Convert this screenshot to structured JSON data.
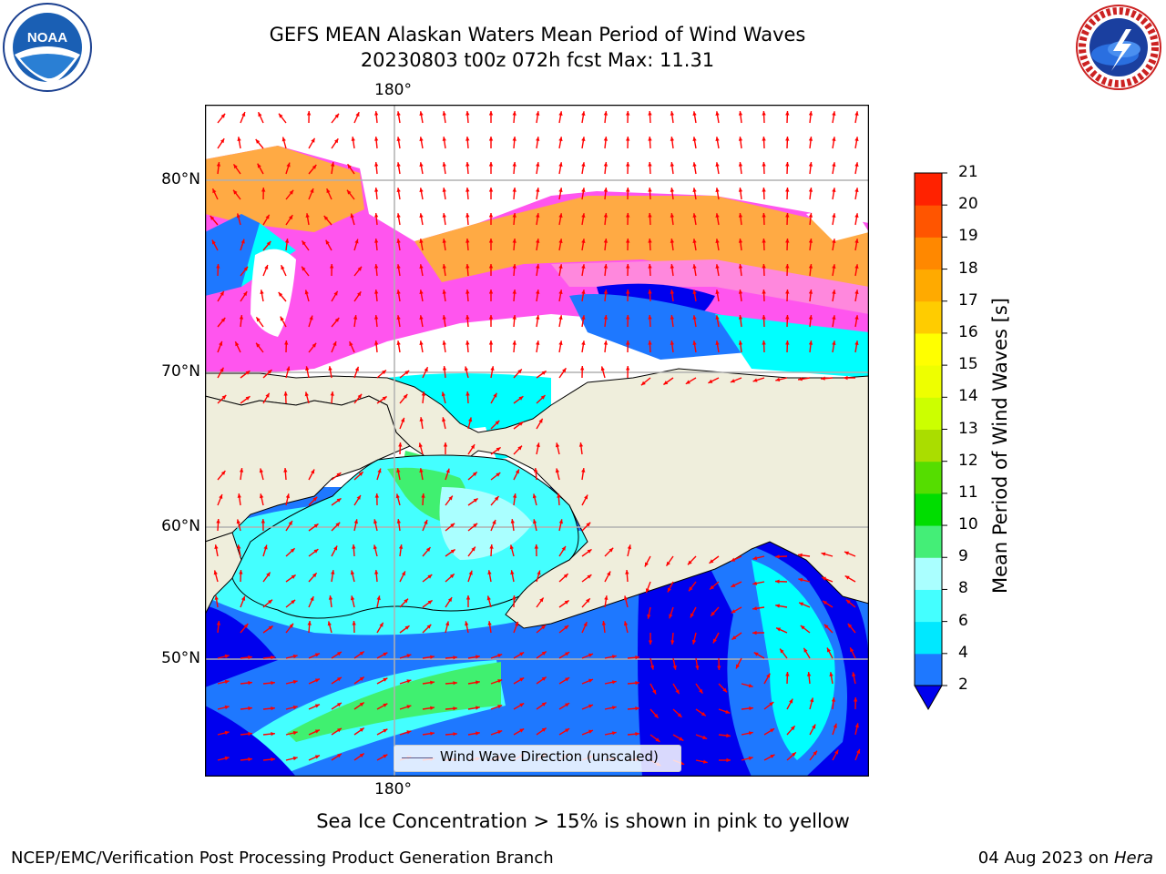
{
  "title": {
    "line1": "GEFS MEAN Alaskan Waters Mean Period of Wind Waves",
    "line2": "20230803 t00z 072h fcst   Max: 11.31"
  },
  "map": {
    "lon_label_top": "180°",
    "lon_label_bottom": "180°",
    "lat_labels": [
      "80°N",
      "70°N",
      "60°N",
      "50°N"
    ],
    "legend_label": "Wind Wave Direction (unscaled)",
    "colors": {
      "land": "#efeedc",
      "ice_pink": "#ff55ee",
      "ice_orange": "#ffaa44",
      "sea_blue": "#0000ee",
      "sea_mid": "#1e78ff",
      "sea_cyan": "#00ffff",
      "sea_light": "#aaffff",
      "sea_green": "#40f070",
      "arrow": "#ff0000",
      "grid": "#b0b0b0"
    }
  },
  "colorbar": {
    "label": "Mean Period of Wind Waves [s]",
    "ticks": [
      "2",
      "4",
      "6",
      "8",
      "9",
      "10",
      "11",
      "12",
      "13",
      "14",
      "15",
      "16",
      "17",
      "18",
      "19",
      "20",
      "21"
    ],
    "colors": [
      "#1e78ff",
      "#00e8ff",
      "#44ffff",
      "#aaffff",
      "#44ee77",
      "#00dd00",
      "#55dd00",
      "#aadd00",
      "#ccff00",
      "#eeff00",
      "#ffff00",
      "#ffcc00",
      "#ffaa00",
      "#ff8800",
      "#ff5500",
      "#ff2200",
      "#ff0000"
    ],
    "extend_color": "#0000ee"
  },
  "caption": "Sea Ice Concentration > 15% is shown in pink to yellow",
  "footer": {
    "left": "NCEP/EMC/Verification Post Processing Product Generation Branch",
    "right_date": "04 Aug 2023 on ",
    "right_host": "Hera"
  },
  "logos": {
    "noaa_text": "NOAA",
    "nws_text": "NATIONAL WEATHER SERVICE"
  }
}
